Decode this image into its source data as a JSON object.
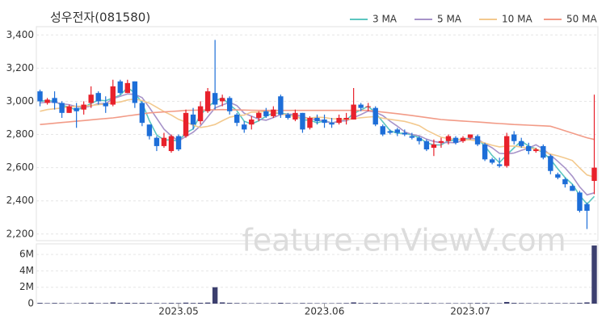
{
  "chart_data": {
    "type": "candlestick",
    "title": "성우전자(081580)",
    "watermark": "feature.enViewV.com",
    "up_color": "#e8212b",
    "down_color": "#1d6ed8",
    "grid": true,
    "xlim": [
      -0.5,
      76.5
    ],
    "xticks": [
      {
        "value": 19,
        "label": "2023.05"
      },
      {
        "value": 39,
        "label": "2023.06"
      },
      {
        "value": 59,
        "label": "2023.07"
      }
    ],
    "ylim": [
      2160,
      3450
    ],
    "yticks": [
      {
        "value": 2200,
        "label": "2,200"
      },
      {
        "value": 2400,
        "label": "2,400"
      },
      {
        "value": 2600,
        "label": "2,600"
      },
      {
        "value": 2800,
        "label": "2,800"
      },
      {
        "value": 3000,
        "label": "3,000"
      },
      {
        "value": 3200,
        "label": "3,200"
      },
      {
        "value": 3400,
        "label": "3,400"
      }
    ],
    "open": [
      3060,
      2990,
      3020,
      2990,
      2930,
      2960,
      2950,
      2990,
      3050,
      2990,
      2980,
      3120,
      3050,
      3120,
      2990,
      2860,
      2780,
      2730,
      2700,
      2790,
      2790,
      2920,
      2880,
      2940,
      3050,
      3000,
      3020,
      2920,
      2860,
      2860,
      2900,
      2940,
      2910,
      3030,
      2920,
      2890,
      2930,
      2840,
      2900,
      2890,
      2870,
      2870,
      2890,
      2890,
      2980,
      2970,
      2960,
      2850,
      2820,
      2830,
      2810,
      2790,
      2780,
      2760,
      2720,
      2750,
      2760,
      2780,
      2760,
      2780,
      2790,
      2740,
      2650,
      2620,
      2610,
      2800,
      2760,
      2730,
      2700,
      2730,
      2670,
      2560,
      2530,
      2490,
      2450,
      2380,
      2520
    ],
    "high": [
      3070,
      3020,
      3060,
      3000,
      2980,
      2990,
      3000,
      3090,
      3060,
      3030,
      3130,
      3130,
      3130,
      3120,
      3000,
      2860,
      2790,
      2810,
      2800,
      2800,
      2950,
      2960,
      3000,
      3080,
      3370,
      3040,
      3030,
      2930,
      2880,
      2910,
      2940,
      2960,
      2970,
      3040,
      2930,
      2950,
      2930,
      2910,
      2920,
      2920,
      2900,
      2920,
      2930,
      3080,
      2990,
      2990,
      2970,
      2860,
      2830,
      2840,
      2830,
      2810,
      2790,
      2770,
      2770,
      2780,
      2800,
      2790,
      2790,
      2800,
      2800,
      2750,
      2660,
      2660,
      2810,
      2820,
      2780,
      2750,
      2720,
      2740,
      2680,
      2570,
      2540,
      2500,
      2460,
      2390,
      3040
    ],
    "low": [
      2970,
      2980,
      2950,
      2900,
      2930,
      2840,
      2920,
      2960,
      2980,
      2930,
      2970,
      3040,
      3050,
      2960,
      2850,
      2770,
      2700,
      2720,
      2690,
      2700,
      2780,
      2830,
      2860,
      2930,
      2950,
      2970,
      2920,
      2850,
      2810,
      2830,
      2880,
      2900,
      2900,
      2900,
      2890,
      2880,
      2810,
      2830,
      2860,
      2840,
      2840,
      2860,
      2860,
      2890,
      2940,
      2940,
      2850,
      2790,
      2800,
      2790,
      2790,
      2770,
      2740,
      2700,
      2670,
      2720,
      2740,
      2740,
      2750,
      2770,
      2730,
      2640,
      2620,
      2600,
      2600,
      2740,
      2720,
      2680,
      2690,
      2650,
      2560,
      2530,
      2480,
      2460,
      2330,
      2230,
      2440
    ],
    "close": [
      3000,
      3010,
      2990,
      2930,
      2970,
      2940,
      2980,
      3040,
      3000,
      2970,
      3090,
      3050,
      3110,
      2990,
      2870,
      2790,
      2730,
      2780,
      2790,
      2710,
      2930,
      2860,
      2970,
      3060,
      2980,
      3020,
      2940,
      2870,
      2830,
      2890,
      2930,
      2910,
      2950,
      2920,
      2900,
      2930,
      2830,
      2900,
      2880,
      2870,
      2860,
      2900,
      2900,
      2980,
      2960,
      2970,
      2860,
      2800,
      2810,
      2810,
      2800,
      2780,
      2760,
      2710,
      2740,
      2760,
      2790,
      2750,
      2780,
      2800,
      2740,
      2650,
      2630,
      2610,
      2790,
      2760,
      2730,
      2700,
      2710,
      2660,
      2580,
      2540,
      2500,
      2460,
      2340,
      2340,
      2600
    ],
    "series": [
      {
        "name": "3 MA",
        "color": "#5cc6c0",
        "values": [
          3000,
          3005,
          3000,
          2977,
          2963,
          2947,
          2963,
          2987,
          3007,
          3003,
          3020,
          3037,
          3083,
          3050,
          2990,
          2883,
          2797,
          2767,
          2767,
          2760,
          2810,
          2833,
          2920,
          2963,
          3003,
          3020,
          2980,
          2943,
          2880,
          2863,
          2883,
          2910,
          2930,
          2927,
          2923,
          2917,
          2887,
          2887,
          2870,
          2883,
          2870,
          2877,
          2887,
          2927,
          2947,
          2970,
          2930,
          2877,
          2823,
          2807,
          2807,
          2797,
          2780,
          2750,
          2737,
          2737,
          2763,
          2767,
          2773,
          2777,
          2773,
          2730,
          2673,
          2630,
          2677,
          2720,
          2760,
          2730,
          2713,
          2690,
          2650,
          2593,
          2540,
          2500,
          2433,
          2380,
          2427
        ]
      },
      {
        "name": "5 MA",
        "color": "#a793c9",
        "values": [
          2990,
          2995,
          2995,
          2985,
          2980,
          2968,
          2962,
          2972,
          2986,
          2986,
          3016,
          3030,
          3044,
          3042,
          3022,
          2962,
          2898,
          2832,
          2792,
          2760,
          2788,
          2814,
          2852,
          2906,
          2960,
          2978,
          2994,
          2974,
          2928,
          2910,
          2892,
          2886,
          2902,
          2920,
          2922,
          2922,
          2906,
          2896,
          2888,
          2882,
          2868,
          2882,
          2882,
          2902,
          2920,
          2942,
          2934,
          2914,
          2880,
          2850,
          2816,
          2800,
          2792,
          2772,
          2758,
          2750,
          2752,
          2750,
          2764,
          2776,
          2772,
          2744,
          2720,
          2686,
          2684,
          2688,
          2704,
          2718,
          2738,
          2712,
          2676,
          2638,
          2598,
          2548,
          2484,
          2436,
          2448
        ]
      },
      {
        "name": "10 MA",
        "color": "#f3c98e",
        "values": [
          2940,
          2950,
          2955,
          2960,
          2965,
          2970,
          2970,
          2975,
          2980,
          2983,
          2992,
          2996,
          3008,
          3014,
          3004,
          2989,
          2964,
          2938,
          2917,
          2891,
          2875,
          2856,
          2842,
          2849,
          2860,
          2883,
          2904,
          2913,
          2917,
          2935,
          2935,
          2940,
          2938,
          2924,
          2916,
          2907,
          2896,
          2899,
          2904,
          2902,
          2895,
          2894,
          2889,
          2895,
          2901,
          2905,
          2908,
          2898,
          2891,
          2885,
          2879,
          2867,
          2853,
          2826,
          2804,
          2783,
          2776,
          2771,
          2768,
          2767,
          2761,
          2748,
          2735,
          2725,
          2730,
          2730,
          2724,
          2719,
          2712,
          2698,
          2682,
          2671,
          2658,
          2643,
          2598,
          2556,
          2543
        ]
      },
      {
        "name": "50 MA",
        "color": "#f29b87",
        "values": [
          2860,
          2864,
          2868,
          2872,
          2876,
          2880,
          2884,
          2888,
          2892,
          2896,
          2900,
          2906,
          2912,
          2918,
          2924,
          2930,
          2933,
          2936,
          2939,
          2942,
          2945,
          2946,
          2947,
          2948,
          2949,
          2950,
          2949,
          2948,
          2947,
          2946,
          2945,
          2945,
          2945,
          2945,
          2945,
          2945,
          2945,
          2945,
          2945,
          2945,
          2945,
          2945,
          2945,
          2945,
          2945,
          2945,
          2940,
          2935,
          2930,
          2925,
          2920,
          2914,
          2908,
          2902,
          2896,
          2890,
          2887,
          2884,
          2881,
          2878,
          2875,
          2872,
          2869,
          2866,
          2863,
          2860,
          2858,
          2856,
          2854,
          2852,
          2850,
          2836,
          2822,
          2808,
          2794,
          2780,
          2770
        ]
      }
    ],
    "volume": {
      "color": "#3c3f6e",
      "ylim": [
        0,
        7300000
      ],
      "yticks": [
        0,
        {
          "value": 2000000,
          "label": "2M"
        },
        {
          "value": 4000000,
          "label": "4M"
        },
        {
          "value": 6000000,
          "label": "6M"
        }
      ],
      "values": [
        90000,
        60000,
        80000,
        70000,
        50000,
        60000,
        70000,
        110000,
        60000,
        70000,
        150000,
        90000,
        100000,
        80000,
        90000,
        80000,
        70000,
        60000,
        80000,
        70000,
        120000,
        80000,
        100000,
        130000,
        2000000,
        150000,
        90000,
        70000,
        60000,
        50000,
        60000,
        50000,
        60000,
        100000,
        60000,
        50000,
        70000,
        60000,
        50000,
        50000,
        50000,
        60000,
        70000,
        150000,
        80000,
        60000,
        90000,
        70000,
        60000,
        50000,
        50000,
        60000,
        70000,
        80000,
        60000,
        50000,
        60000,
        50000,
        50000,
        60000,
        80000,
        70000,
        60000,
        60000,
        200000,
        90000,
        70000,
        60000,
        50000,
        60000,
        70000,
        60000,
        60000,
        70000,
        90000,
        150000,
        7100000
      ]
    }
  }
}
